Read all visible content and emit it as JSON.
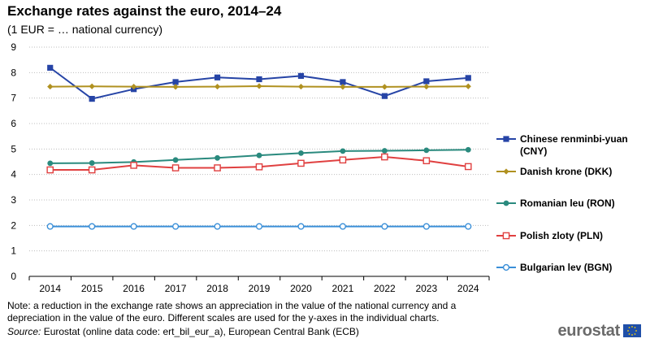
{
  "title": "Exchange rates against the euro, 2014–24",
  "subtitle": "(1 EUR = … national currency)",
  "note": "Note: a reduction in the exchange rate shows an appreciation in the value of the national currency and a depreciation in the value of the euro. Different scales are used for the y-axes in the individual charts.",
  "source_label": "Source:",
  "source_text": " Eurostat (online data code: ert_bil_eur_a), European Central Bank (ECB)",
  "logo_text": "eurostat",
  "chart_data": {
    "type": "line",
    "title": "Exchange rates against the euro, 2014–24",
    "subtitle": "(1 EUR = … national currency)",
    "xlabel": "",
    "ylabel": "",
    "ylim": [
      0,
      9
    ],
    "yticks": [
      0,
      1,
      2,
      3,
      4,
      5,
      6,
      7,
      8,
      9
    ],
    "grid": true,
    "legend_position": "right",
    "categories": [
      "2014",
      "2015",
      "2016",
      "2017",
      "2018",
      "2019",
      "2020",
      "2021",
      "2022",
      "2023",
      "2024"
    ],
    "series": [
      {
        "name": "Chinese renminbi-yuan (CNY)",
        "label_lines": [
          "Chinese renminbi-yuan",
          "(CNY)"
        ],
        "color": "#2644a6",
        "marker": "square-filled",
        "values": [
          8.19,
          6.97,
          7.35,
          7.63,
          7.81,
          7.74,
          7.87,
          7.63,
          7.08,
          7.66,
          7.79
        ]
      },
      {
        "name": "Danish krone (DKK)",
        "label_lines": [
          "Danish krone (DKK)"
        ],
        "color": "#b09120",
        "marker": "diamond-filled",
        "values": [
          7.45,
          7.46,
          7.45,
          7.44,
          7.45,
          7.47,
          7.45,
          7.44,
          7.44,
          7.45,
          7.46
        ]
      },
      {
        "name": "Romanian leu (RON)",
        "label_lines": [
          "Romanian leu (RON)"
        ],
        "color": "#2a8a7e",
        "marker": "circle-filled",
        "values": [
          4.44,
          4.45,
          4.49,
          4.57,
          4.65,
          4.75,
          4.84,
          4.92,
          4.93,
          4.95,
          4.97
        ]
      },
      {
        "name": "Polish zloty (PLN)",
        "label_lines": [
          "Polish zloty (PLN)"
        ],
        "color": "#e04040",
        "marker": "square-open",
        "values": [
          4.18,
          4.18,
          4.36,
          4.26,
          4.26,
          4.3,
          4.44,
          4.57,
          4.69,
          4.54,
          4.31
        ]
      },
      {
        "name": "Bulgarian lev (BGN)",
        "label_lines": [
          "Bulgarian lev (BGN)"
        ],
        "color": "#3a8fd8",
        "marker": "circle-open",
        "values": [
          1.96,
          1.96,
          1.96,
          1.96,
          1.96,
          1.96,
          1.96,
          1.96,
          1.96,
          1.96,
          1.96
        ]
      }
    ]
  }
}
